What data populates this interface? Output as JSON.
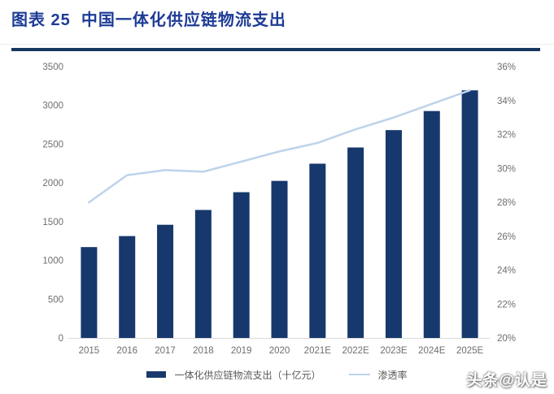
{
  "page": {
    "title": "图表 25  中国一体化供应链物流支出",
    "watermark": "头条@认是"
  },
  "colors": {
    "title_blue": "#1e3c96",
    "rule_navy": "#17375e",
    "bar_navy": "#17386d",
    "line_light_blue": "#bdd3ea",
    "axis_text_gray": "#6e6e6e",
    "axis_line_gray": "#d9d9d9"
  },
  "chart_data": {
    "type": "bar",
    "subtype": "combo-bar-line",
    "title": "图表 25  中国一体化供应链物流支出",
    "categories": [
      "2015",
      "2016",
      "2017",
      "2018",
      "2019",
      "2020",
      "2021E",
      "2022E",
      "2023E",
      "2024E",
      "2025E"
    ],
    "series": [
      {
        "name": "一体化供应链物流支出（十亿元）",
        "type": "bar",
        "axis": "left",
        "color": "#17386d",
        "values": [
          1172,
          1314,
          1460,
          1651,
          1880,
          2026,
          2248,
          2457,
          2681,
          2927,
          3194
        ]
      },
      {
        "name": "渗透率",
        "type": "line",
        "axis": "right",
        "color": "#bdd3ea",
        "values": [
          28.0,
          29.6,
          29.9,
          29.8,
          30.4,
          31.0,
          31.5,
          32.3,
          33.0,
          33.8,
          34.6
        ]
      }
    ],
    "left_axis": {
      "min": 0,
      "max": 3500,
      "step": 500,
      "ticks": [
        "0",
        "500",
        "1000",
        "1500",
        "2000",
        "2500",
        "3000",
        "3500"
      ]
    },
    "right_axis": {
      "min": 20,
      "max": 36,
      "step": 2,
      "ticks": [
        "20%",
        "22%",
        "24%",
        "26%",
        "28%",
        "30%",
        "32%",
        "34%",
        "36%"
      ]
    },
    "grid": false,
    "legend_position": "bottom"
  }
}
